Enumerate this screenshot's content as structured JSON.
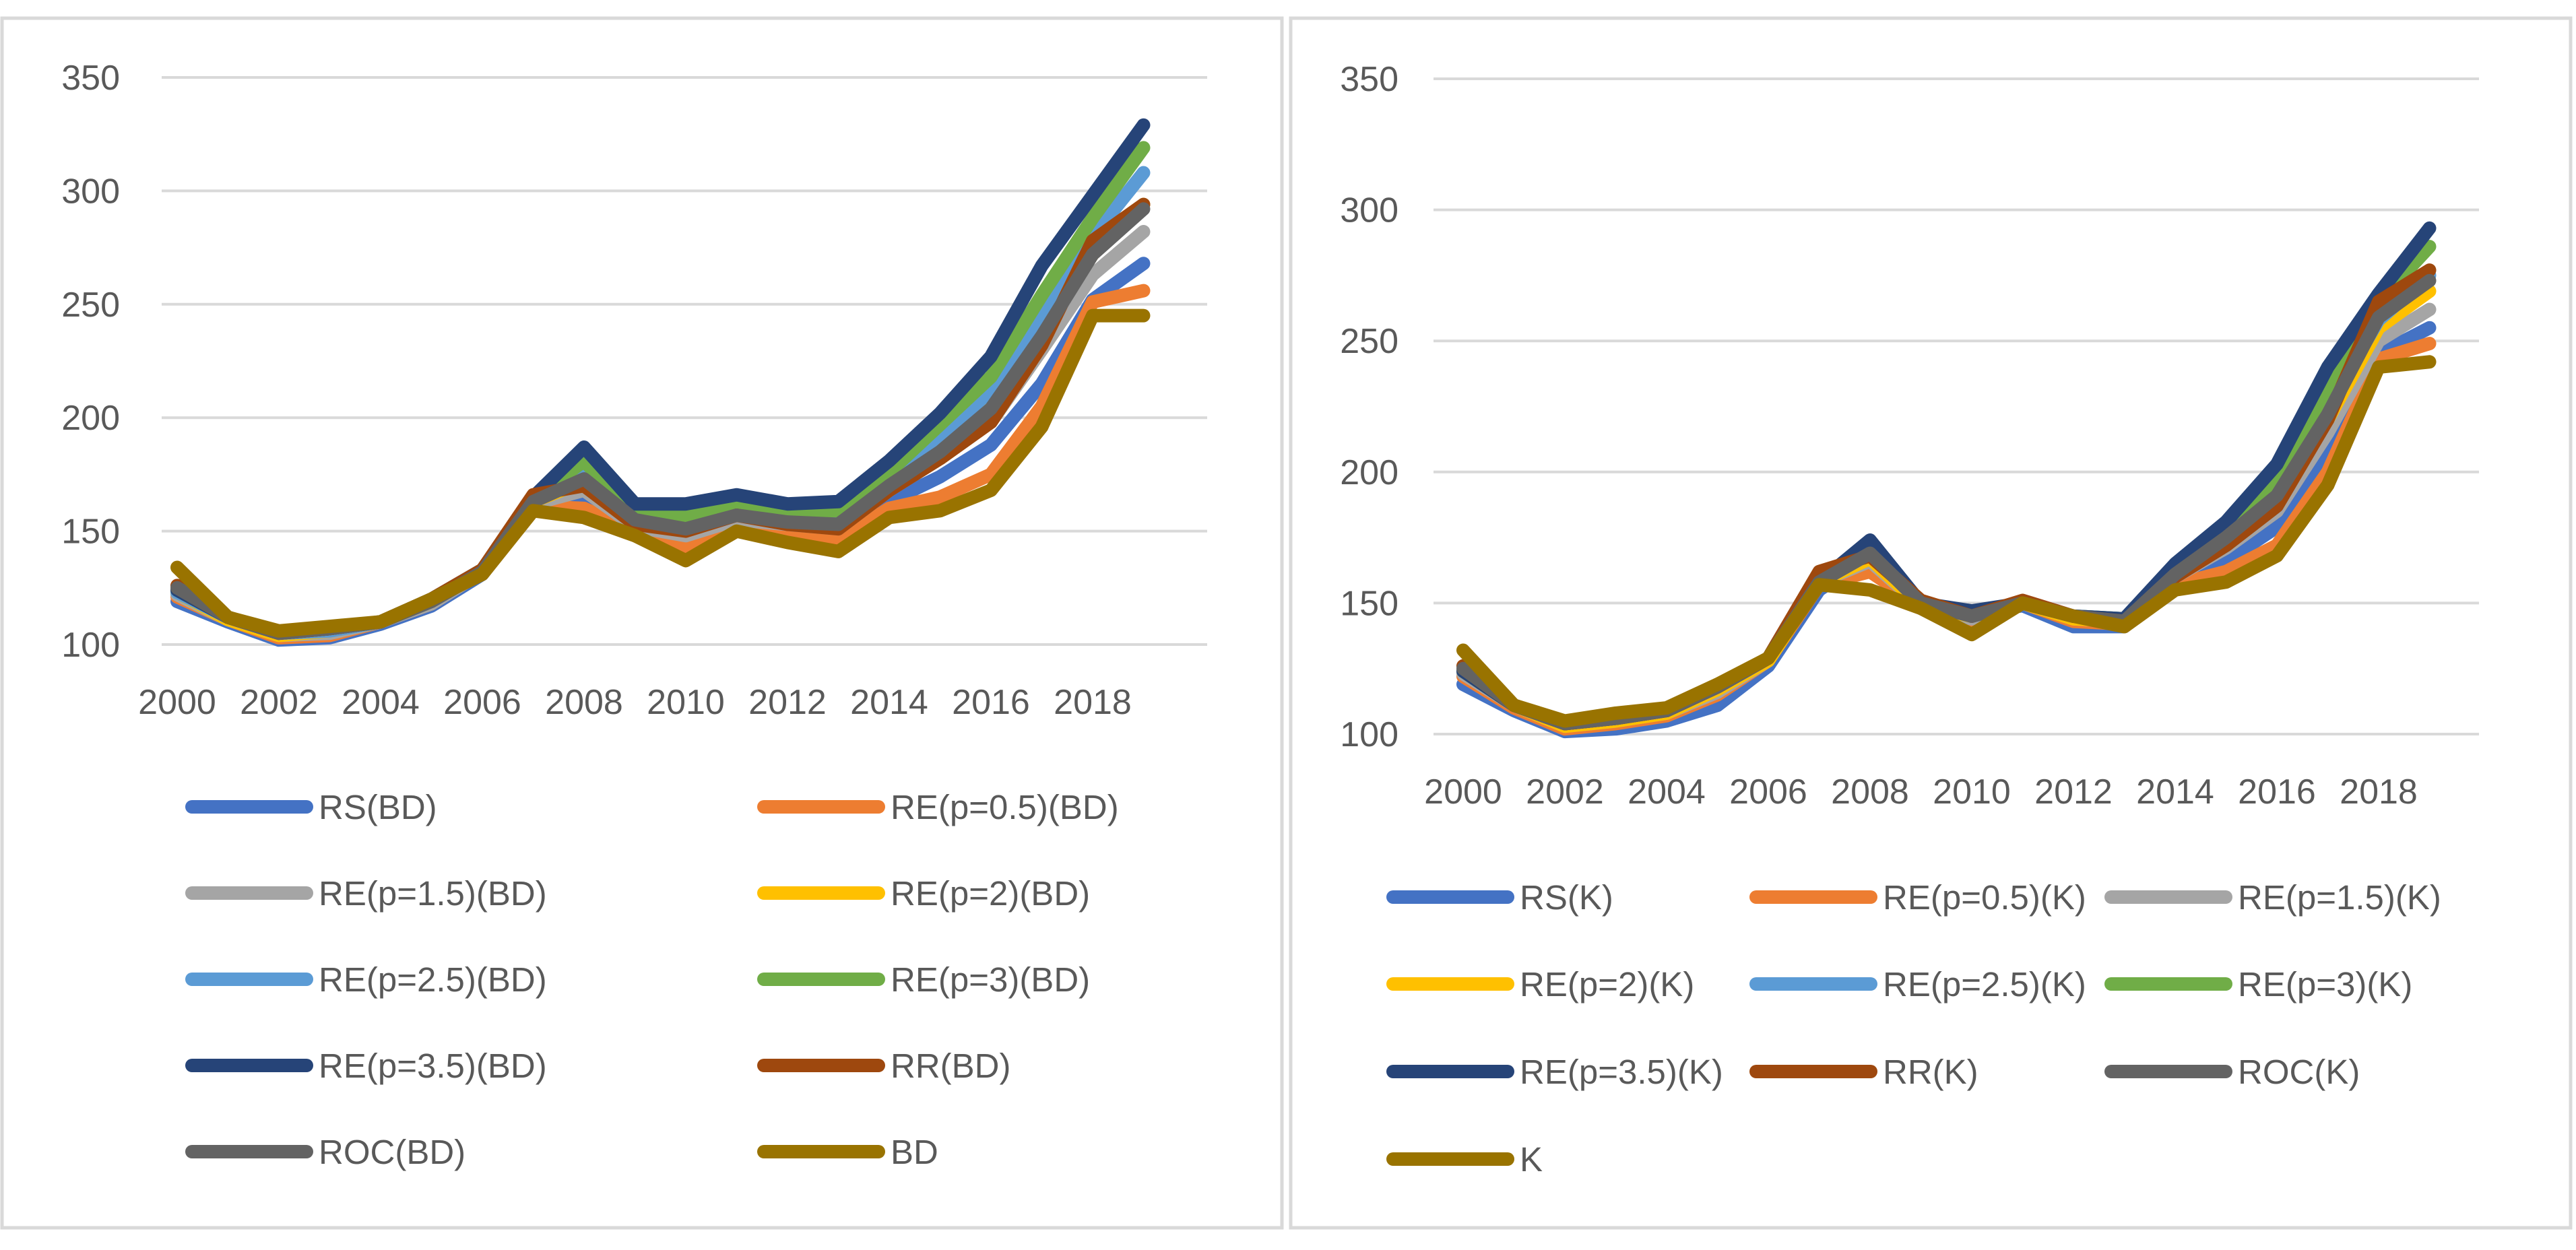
{
  "chart_data": [
    {
      "type": "line",
      "title": "",
      "xlabel": "",
      "ylabel": "",
      "ylim": [
        100,
        350
      ],
      "ytick_labels": [
        "100",
        "150",
        "200",
        "250",
        "300",
        "350"
      ],
      "xtick_labels": [
        "2000",
        "2002",
        "2004",
        "2006",
        "2008",
        "2010",
        "2012",
        "2014",
        "2016",
        "2018"
      ],
      "x": [
        2000,
        2001,
        2002,
        2003,
        2004,
        2005,
        2006,
        2007,
        2008,
        2009,
        2010,
        2011,
        2012,
        2013,
        2014,
        2015,
        2016,
        2017,
        2018,
        2019
      ],
      "legend": "bottom",
      "series": [
        {
          "name": "RS(BD)",
          "color": "#4472C4",
          "values": [
            119,
            110,
            102,
            103,
            109,
            117,
            131,
            160,
            163,
            148,
            145,
            153,
            150,
            148,
            163,
            174,
            188,
            215,
            252,
            268
          ]
        },
        {
          "name": "RE(p=0.5)(BD)",
          "color": "#ED7D31",
          "values": [
            121,
            111,
            103,
            104,
            110,
            118,
            132,
            161,
            160,
            150,
            142,
            152,
            149,
            146,
            160,
            165,
            175,
            205,
            251,
            256
          ]
        },
        {
          "name": "RE(p=1.5)(BD)",
          "color": "#A5A5A5",
          "values": [
            122,
            111,
            104,
            105,
            110,
            118,
            132,
            162,
            168,
            152,
            148,
            155,
            153,
            151,
            168,
            182,
            198,
            230,
            263,
            282
          ]
        },
        {
          "name": "RE(p=2)(BD)",
          "color": "#FFC000",
          "values": [
            123,
            111,
            104,
            106,
            110,
            119,
            132,
            163,
            172,
            153,
            151,
            157,
            155,
            154,
            170,
            187,
            205,
            238,
            272,
            294
          ]
        },
        {
          "name": "RE(p=2.5)(BD)",
          "color": "#5B9BD5",
          "values": [
            123,
            112,
            105,
            106,
            110,
            119,
            132,
            163,
            176,
            155,
            153,
            159,
            157,
            156,
            173,
            192,
            212,
            246,
            280,
            308
          ]
        },
        {
          "name": "RE(p=3)(BD)",
          "color": "#70AD47",
          "values": [
            124,
            112,
            105,
            107,
            110,
            120,
            133,
            164,
            181,
            157,
            157,
            162,
            159,
            159,
            176,
            197,
            218,
            254,
            288,
            319
          ]
        },
        {
          "name": "RE(p=3.5)(BD)",
          "color": "#264478",
          "values": [
            124,
            112,
            105,
            107,
            110,
            120,
            133,
            165,
            187,
            162,
            162,
            166,
            162,
            163,
            181,
            202,
            227,
            267,
            298,
            329
          ]
        },
        {
          "name": "RR(BD)",
          "color": "#9E480E",
          "values": [
            126,
            112,
            105,
            107,
            110,
            120,
            133,
            166,
            170,
            153,
            150,
            157,
            153,
            151,
            168,
            182,
            198,
            232,
            278,
            294
          ]
        },
        {
          "name": "ROC(BD)",
          "color": "#636363",
          "values": [
            125,
            112,
            105,
            107,
            110,
            119,
            132,
            163,
            173,
            155,
            151,
            157,
            154,
            153,
            170,
            185,
            204,
            236,
            272,
            292
          ]
        },
        {
          "name": "BD",
          "color": "#997300",
          "values": [
            134,
            112,
            106,
            108,
            110,
            120,
            131,
            159,
            156,
            148,
            137,
            150,
            145,
            141,
            156,
            159,
            168,
            196,
            245,
            245
          ]
        }
      ]
    },
    {
      "type": "line",
      "title": "",
      "xlabel": "",
      "ylabel": "",
      "ylim": [
        100,
        350
      ],
      "ytick_labels": [
        "100",
        "150",
        "200",
        "250",
        "300",
        "350"
      ],
      "xtick_labels": [
        "2000",
        "2002",
        "2004",
        "2006",
        "2008",
        "2010",
        "2012",
        "2014",
        "2016",
        "2018"
      ],
      "x": [
        2000,
        2001,
        2002,
        2003,
        2004,
        2005,
        2006,
        2007,
        2008,
        2009,
        2010,
        2011,
        2012,
        2013,
        2014,
        2015,
        2016,
        2017,
        2018,
        2019
      ],
      "legend": "bottom",
      "series": [
        {
          "name": "RS(K)",
          "color": "#4472C4",
          "values": [
            119,
            109,
            101,
            102,
            105,
            111,
            126,
            155,
            168,
            148,
            146,
            149,
            141,
            141,
            158,
            166,
            179,
            208,
            245,
            255
          ]
        },
        {
          "name": "RE(p=0.5)(K)",
          "color": "#ED7D31",
          "values": [
            122,
            110,
            102,
            104,
            107,
            115,
            128,
            157,
            162,
            149,
            143,
            150,
            143,
            142,
            157,
            162,
            172,
            200,
            243,
            249
          ]
        },
        {
          "name": "RE(p=1.5)(K)",
          "color": "#A5A5A5",
          "values": [
            123,
            111,
            103,
            105,
            108,
            116,
            128,
            158,
            166,
            149,
            144,
            150,
            144,
            143,
            160,
            171,
            185,
            215,
            250,
            262
          ]
        },
        {
          "name": "RE(p=2)(K)",
          "color": "#FFC000",
          "values": [
            124,
            111,
            103,
            105,
            108,
            117,
            128,
            158,
            167,
            149,
            145,
            150,
            144,
            143,
            162,
            174,
            189,
            220,
            255,
            269
          ]
        },
        {
          "name": "RE(p=2.5)(K)",
          "color": "#5B9BD5",
          "values": [
            124,
            111,
            104,
            106,
            109,
            118,
            129,
            158,
            169,
            150,
            145,
            150,
            145,
            144,
            163,
            177,
            193,
            225,
            258,
            275
          ]
        },
        {
          "name": "RE(p=3)(K)",
          "color": "#70AD47",
          "values": [
            124,
            111,
            104,
            106,
            109,
            118,
            129,
            158,
            171,
            150,
            146,
            150,
            145,
            144,
            164,
            178,
            197,
            232,
            265,
            286
          ]
        },
        {
          "name": "RE(p=3.5)(K)",
          "color": "#264478",
          "values": [
            124,
            111,
            104,
            106,
            109,
            118,
            129,
            158,
            174,
            150,
            147,
            150,
            145,
            144,
            165,
            181,
            203,
            240,
            268,
            293
          ]
        },
        {
          "name": "RR(K)",
          "color": "#9E480E",
          "values": [
            126,
            111,
            104,
            106,
            109,
            118,
            129,
            162,
            168,
            151,
            145,
            151,
            145,
            143,
            160,
            172,
            187,
            220,
            265,
            277
          ]
        },
        {
          "name": "ROC(K)",
          "color": "#636363",
          "values": [
            125,
            111,
            104,
            106,
            109,
            118,
            129,
            158,
            169,
            150,
            145,
            150,
            145,
            143,
            161,
            175,
            191,
            222,
            259,
            273
          ]
        },
        {
          "name": "K",
          "color": "#997300",
          "values": [
            132,
            111,
            105,
            108,
            110,
            119,
            129,
            157,
            155,
            148,
            138,
            150,
            145,
            141,
            155,
            158,
            168,
            195,
            240,
            242
          ]
        }
      ]
    }
  ]
}
